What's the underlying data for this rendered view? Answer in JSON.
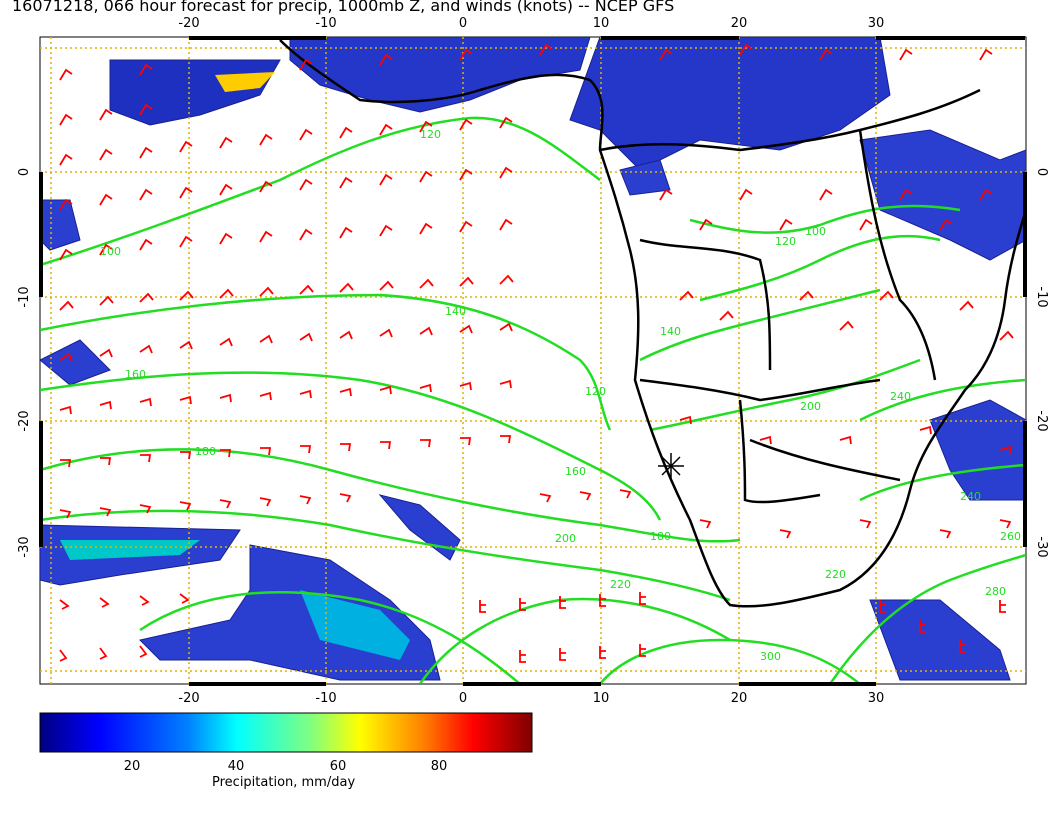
{
  "title": "16071218, 066 hour forecast for precip, 1000mb Z, and winds (knots) -- NCEP GFS",
  "map": {
    "lon_range": [
      -30,
      41
    ],
    "lat_range": [
      -40,
      11
    ],
    "lon_ticks": [
      "-20",
      "-10",
      "0",
      "10",
      "20",
      "30"
    ],
    "lat_ticks_left": [
      "0",
      "-10",
      "-20",
      "-30"
    ],
    "lat_ticks_right": [
      "0",
      "-10",
      "-20",
      "-30"
    ],
    "contour_labels": [
      "100",
      "120",
      "140",
      "160",
      "180",
      "200",
      "220",
      "240",
      "260",
      "280",
      "300",
      "120",
      "160",
      "180",
      "200",
      "220",
      "240",
      "100",
      "120",
      "140"
    ],
    "colors": {
      "contours": "#22dd22",
      "wind_barbs": "#ff0000",
      "grid": "#e0b400",
      "coast": "#000000"
    }
  },
  "colorbar": {
    "label": "Precipitation, mm/day",
    "ticks": [
      "20",
      "40",
      "60",
      "80"
    ],
    "range": [
      0,
      100
    ],
    "colors": [
      "#000080",
      "#0000ff",
      "#0080ff",
      "#00ffff",
      "#80ff80",
      "#ffff00",
      "#ff8000",
      "#ff0000",
      "#800000"
    ]
  }
}
